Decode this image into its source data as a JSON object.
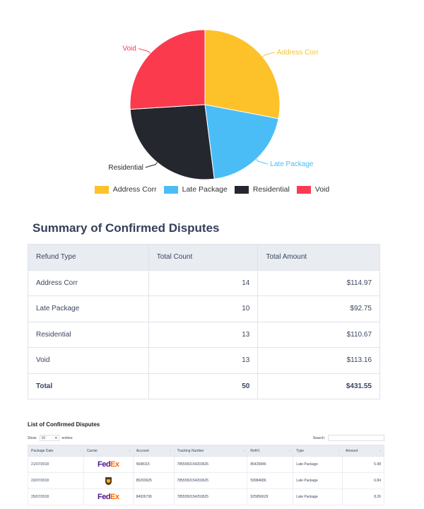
{
  "chart_data": {
    "type": "pie",
    "categories": [
      "Address Corr",
      "Late Package",
      "Residential",
      "Void"
    ],
    "values": [
      14,
      10,
      13,
      13
    ],
    "colors": [
      "#fdc12a",
      "#4bbdf6",
      "#25272e",
      "#fb3a4e"
    ],
    "legend_position": "bottom"
  },
  "summary": {
    "title": "Summary of Confirmed Disputes",
    "headers": [
      "Refund Type",
      "Total Count",
      "Total Amount"
    ],
    "rows": [
      {
        "type": "Address Corr",
        "count": "14",
        "amount": "$114.97"
      },
      {
        "type": "Late Package",
        "count": "10",
        "amount": "$92.75"
      },
      {
        "type": "Residential",
        "count": "13",
        "amount": "$110.67"
      },
      {
        "type": "Void",
        "count": "13",
        "amount": "$113.16"
      }
    ],
    "total": {
      "label": "Total",
      "count": "50",
      "amount": "$431.55"
    }
  },
  "list": {
    "title": "List of Confirmed Disputes",
    "show_label": "Show",
    "entries_value": "10",
    "entries_label": "entries",
    "search_label": "Search:",
    "headers": [
      "Package Date",
      "Carrier",
      "Account",
      "Tracking Number",
      "Ref#1",
      "Type",
      "Amount"
    ],
    "rows": [
      {
        "date": "21/07/2018",
        "carrier": "fedex",
        "account": "5648115",
        "tracking": "7855550154293625",
        "ref": "85425846",
        "type": "Late Package",
        "amount": "5.98"
      },
      {
        "date": "23/07/2018",
        "carrier": "ups",
        "account": "85293625",
        "tracking": "7855550154293625",
        "ref": "59984686",
        "type": "Late Package",
        "amount": "6.84"
      },
      {
        "date": "25/07/2018",
        "carrier": "fedex",
        "account": "84926736",
        "tracking": "7855550154293625",
        "ref": "925856629",
        "type": "Late Package",
        "amount": "8.26"
      }
    ],
    "carrier_logos": {
      "fedex_part1": "Fed",
      "fedex_part2": "Ex"
    }
  }
}
